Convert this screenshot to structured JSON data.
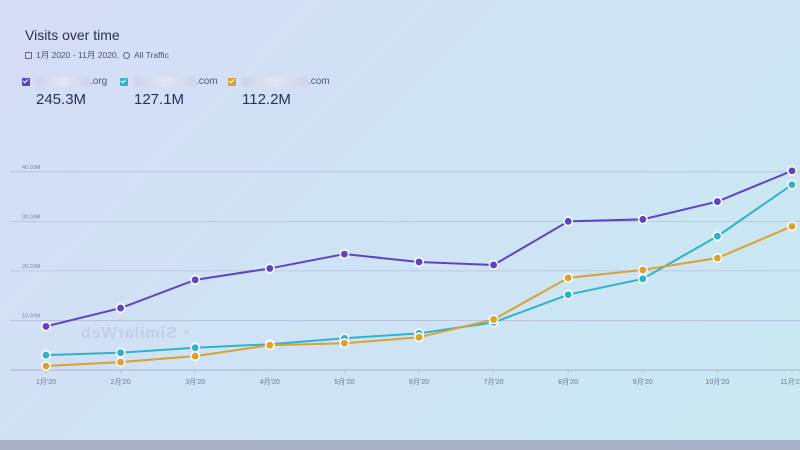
{
  "header": {
    "title": "Visits over time",
    "subtitle_range": "1月 2020 - 11月 2020,",
    "subtitle_filter": "All Traffic"
  },
  "legend": [
    {
      "suffix": ".org",
      "value": "245.3M",
      "color": "#5b45c4"
    },
    {
      "suffix": ".com",
      "value": "127.1M",
      "color": "#2fb2cc"
    },
    {
      "suffix": ".com",
      "value": "112.2M",
      "color": "#d9a232"
    }
  ],
  "chart_data": {
    "type": "line",
    "title": "Visits over time",
    "x": [
      "1月'20",
      "2月'20",
      "3月'20",
      "4月'20",
      "5月'20",
      "6月'20",
      "7月'20",
      "8月'20",
      "9月'20",
      "10月'20",
      "11月'20"
    ],
    "y_ticks": [
      "10.00M",
      "20.00M",
      "30.00M",
      "40.00M"
    ],
    "ylim": [
      0,
      44
    ],
    "series": [
      {
        "name": ".org",
        "color": "#5b45c4",
        "values": [
          8.8,
          12.5,
          18.2,
          20.5,
          23.4,
          21.8,
          21.2,
          30.0,
          30.4,
          34.0,
          40.2
        ]
      },
      {
        "name": ".com",
        "color": "#2fb2cc",
        "values": [
          3.0,
          3.5,
          4.5,
          5.2,
          6.4,
          7.4,
          9.6,
          15.2,
          18.4,
          27.0,
          37.4
        ]
      },
      {
        "name": ".com",
        "color": "#d9a232",
        "values": [
          0.8,
          1.6,
          2.8,
          5.0,
          5.4,
          6.6,
          10.2,
          18.6,
          20.2,
          22.6,
          29.0
        ]
      }
    ],
    "grid": true
  }
}
